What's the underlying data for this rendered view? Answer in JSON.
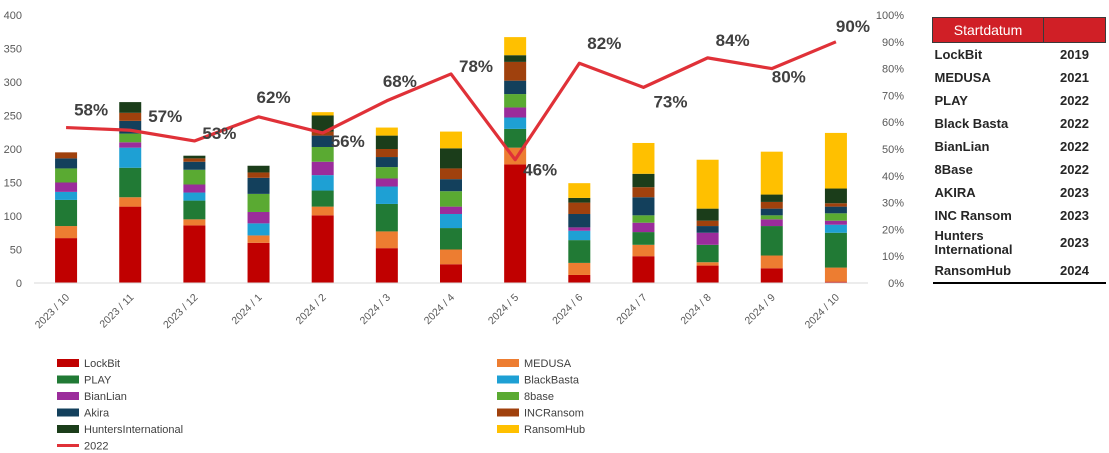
{
  "chart_data": {
    "type": "bar",
    "stacked": true,
    "categories": [
      "2023 / 10",
      "2023 / 11",
      "2023 / 12",
      "2024 / 1",
      "2024 / 2",
      "2024 / 3",
      "2024 / 4",
      "2024 / 5",
      "2024 / 6",
      "2024 / 7",
      "2024 / 8",
      "2024 / 9",
      "2024 / 10"
    ],
    "ylim": [
      0,
      400
    ],
    "yticks": [
      0,
      50,
      100,
      150,
      200,
      250,
      300,
      350,
      400
    ],
    "y2lim": [
      0,
      100
    ],
    "y2ticks": [
      "0%",
      "10%",
      "20%",
      "30%",
      "40%",
      "50%",
      "60%",
      "70%",
      "80%",
      "90%",
      "100%"
    ],
    "series": [
      {
        "name": "LockBit",
        "color": "#c00000",
        "values": [
          67,
          114,
          86,
          60,
          101,
          52,
          28,
          177,
          12,
          40,
          26,
          22,
          2
        ]
      },
      {
        "name": "MEDUSA",
        "color": "#ed7d31",
        "values": [
          18,
          14,
          9,
          11,
          13,
          25,
          22,
          25,
          18,
          17,
          5,
          19,
          21
        ]
      },
      {
        "name": "PLAY",
        "color": "#217a35",
        "values": [
          39,
          44,
          28,
          0,
          24,
          41,
          32,
          28,
          34,
          19,
          26,
          44,
          52
        ]
      },
      {
        "name": "BlackBasta",
        "color": "#1ea0d4",
        "values": [
          12,
          30,
          12,
          18,
          23,
          26,
          21,
          17,
          14,
          0,
          0,
          0,
          12
        ]
      },
      {
        "name": "BianLian",
        "color": "#9b2c9b",
        "values": [
          14,
          8,
          12,
          17,
          20,
          12,
          11,
          15,
          5,
          14,
          18,
          10,
          6
        ]
      },
      {
        "name": "8base",
        "color": "#5aaa32",
        "values": [
          21,
          13,
          22,
          27,
          22,
          17,
          23,
          20,
          0,
          11,
          0,
          6,
          11
        ]
      },
      {
        "name": "Akira",
        "color": "#13405c",
        "values": [
          15,
          19,
          12,
          24,
          17,
          15,
          18,
          20,
          20,
          27,
          10,
          10,
          10
        ]
      },
      {
        "name": "INCRansom",
        "color": "#a0410d",
        "values": [
          9,
          12,
          5,
          8,
          6,
          12,
          16,
          28,
          17,
          15,
          8,
          10,
          5
        ]
      },
      {
        "name": "HuntersInternational",
        "color": "#1b3d1a",
        "values": [
          0,
          16,
          4,
          10,
          24,
          20,
          30,
          10,
          7,
          20,
          18,
          11,
          22
        ]
      },
      {
        "name": "RansomHub",
        "color": "#ffc000",
        "values": [
          0,
          0,
          0,
          0,
          5,
          12,
          25,
          27,
          22,
          46,
          73,
          64,
          83
        ]
      }
    ],
    "line": {
      "name": "2022",
      "color": "#e03138",
      "values": [
        58,
        57,
        53,
        62,
        56,
        68,
        78,
        46,
        82,
        73,
        84,
        80,
        90
      ],
      "labels": [
        "58%",
        "57%",
        "53%",
        "62%",
        "56%",
        "68%",
        "78%",
        "46%",
        "82%",
        "73%",
        "84%",
        "80%",
        "90%"
      ]
    },
    "legend": {
      "placement": "bottom"
    }
  },
  "table": {
    "header": "Startdatum",
    "rows": [
      {
        "name": "LockBit",
        "year": "2019"
      },
      {
        "name": "MEDUSA",
        "year": "2021"
      },
      {
        "name": "PLAY",
        "year": "2022"
      },
      {
        "name": "Black Basta",
        "year": "2022"
      },
      {
        "name": "BianLian",
        "year": "2022"
      },
      {
        "name": "8Base",
        "year": "2022"
      },
      {
        "name": "AKIRA",
        "year": "2023"
      },
      {
        "name": "INC Ransom",
        "year": "2023"
      },
      {
        "name": "Hunters International",
        "year": "2023"
      },
      {
        "name": "RansomHub",
        "year": "2024"
      }
    ]
  }
}
